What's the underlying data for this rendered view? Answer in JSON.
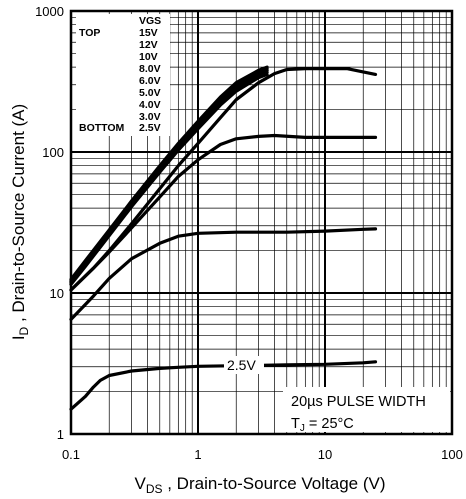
{
  "chart_data": {
    "type": "line",
    "x_scale": "log",
    "y_scale": "log",
    "xlim": [
      0.1,
      100
    ],
    "ylim": [
      1,
      1000
    ],
    "grid": true,
    "xlabel": {
      "sym": "V",
      "sub": "DS",
      "rest": " , Drain-to-Source Voltage (V)"
    },
    "ylabel": {
      "sym": "I",
      "sub": "D",
      "rest": " , Drain-to-Source Current (A)"
    },
    "x_ticks": [
      "0.1",
      "1",
      "10",
      "100"
    ],
    "y_ticks": [
      "1",
      "10",
      "100",
      "1000"
    ],
    "legend": {
      "header": "VGS",
      "top_label": "TOP",
      "bottom_label": "BOTTOM",
      "entries": [
        "15V",
        "12V",
        "10V",
        "8.0V",
        "6.0V",
        "5.0V",
        "4.0V",
        "3.0V",
        "2.5V"
      ],
      "placement": "top-left"
    },
    "annotations": {
      "curve_label": "2.5V",
      "pulse": "20µs PULSE WIDTH",
      "tj_sym": "T",
      "tj_sub": "J",
      "tj_rest": " = 25°C"
    },
    "series": [
      {
        "x": [
          0.1,
          0.13,
          0.2,
          0.3,
          0.5,
          0.7,
          1.0,
          1.5,
          2.0,
          3.0,
          3.5
        ],
        "y": [
          12.5,
          17,
          28,
          45,
          80,
          115,
          165,
          245,
          310,
          380,
          400
        ]
      },
      {
        "x": [
          0.1,
          0.13,
          0.2,
          0.3,
          0.5,
          0.7,
          1.0,
          1.5,
          2.0,
          3.0,
          3.5
        ],
        "y": [
          12.2,
          16.6,
          27,
          44,
          78,
          112,
          160,
          238,
          300,
          370,
          390
        ]
      },
      {
        "x": [
          0.1,
          0.13,
          0.2,
          0.3,
          0.5,
          0.7,
          1.0,
          1.5,
          2.0,
          3.0,
          3.5
        ],
        "y": [
          12,
          16.2,
          26.5,
          43,
          76,
          109,
          155,
          230,
          290,
          360,
          380
        ]
      },
      {
        "x": [
          0.1,
          0.13,
          0.2,
          0.3,
          0.5,
          0.7,
          1.0,
          1.5,
          2.0,
          3.0,
          3.5
        ],
        "y": [
          11.8,
          15.9,
          26,
          42,
          74,
          106,
          150,
          222,
          280,
          348,
          368
        ]
      },
      {
        "x": [
          0.1,
          0.13,
          0.2,
          0.3,
          0.5,
          0.7,
          1.0,
          1.5,
          2.0,
          3.0,
          3.5
        ],
        "y": [
          11.5,
          15.5,
          25.5,
          41,
          72,
          103,
          146,
          215,
          270,
          337,
          355
        ]
      },
      {
        "x": [
          0.1,
          0.15,
          0.2,
          0.3,
          0.5,
          0.7,
          1.0,
          1.5,
          2.0,
          3.0,
          4.0,
          5.0,
          7.0,
          10,
          15,
          20,
          25
        ],
        "y": [
          10.5,
          15,
          20,
          31,
          55,
          80,
          115,
          175,
          235,
          310,
          360,
          385,
          390,
          390,
          390,
          370,
          355
        ]
      },
      {
        "x": [
          0.1,
          0.15,
          0.2,
          0.3,
          0.5,
          0.7,
          1.0,
          1.5,
          2.0,
          3.0,
          4.0,
          7.0,
          10,
          20,
          25
        ],
        "y": [
          10.5,
          15,
          19.5,
          29,
          48,
          67,
          88,
          113,
          124,
          129,
          131,
          127,
          127,
          127,
          127
        ]
      },
      {
        "x": [
          0.1,
          0.15,
          0.2,
          0.3,
          0.5,
          0.7,
          1.0,
          2.0,
          5.0,
          10,
          20,
          25
        ],
        "y": [
          6.5,
          9.5,
          12.7,
          17.5,
          22.5,
          25.3,
          26.5,
          27,
          27,
          27.5,
          28.3,
          28.5
        ]
      },
      {
        "x": [
          0.1,
          0.13,
          0.15,
          0.17,
          0.2,
          0.3,
          0.5,
          0.7,
          1.0,
          2.0,
          2.5,
          5.0,
          10,
          20,
          25
        ],
        "y": [
          1.5,
          1.85,
          2.15,
          2.4,
          2.6,
          2.8,
          2.92,
          2.97,
          3.02,
          3.05,
          3.06,
          3.09,
          3.12,
          3.2,
          3.25
        ]
      }
    ]
  }
}
